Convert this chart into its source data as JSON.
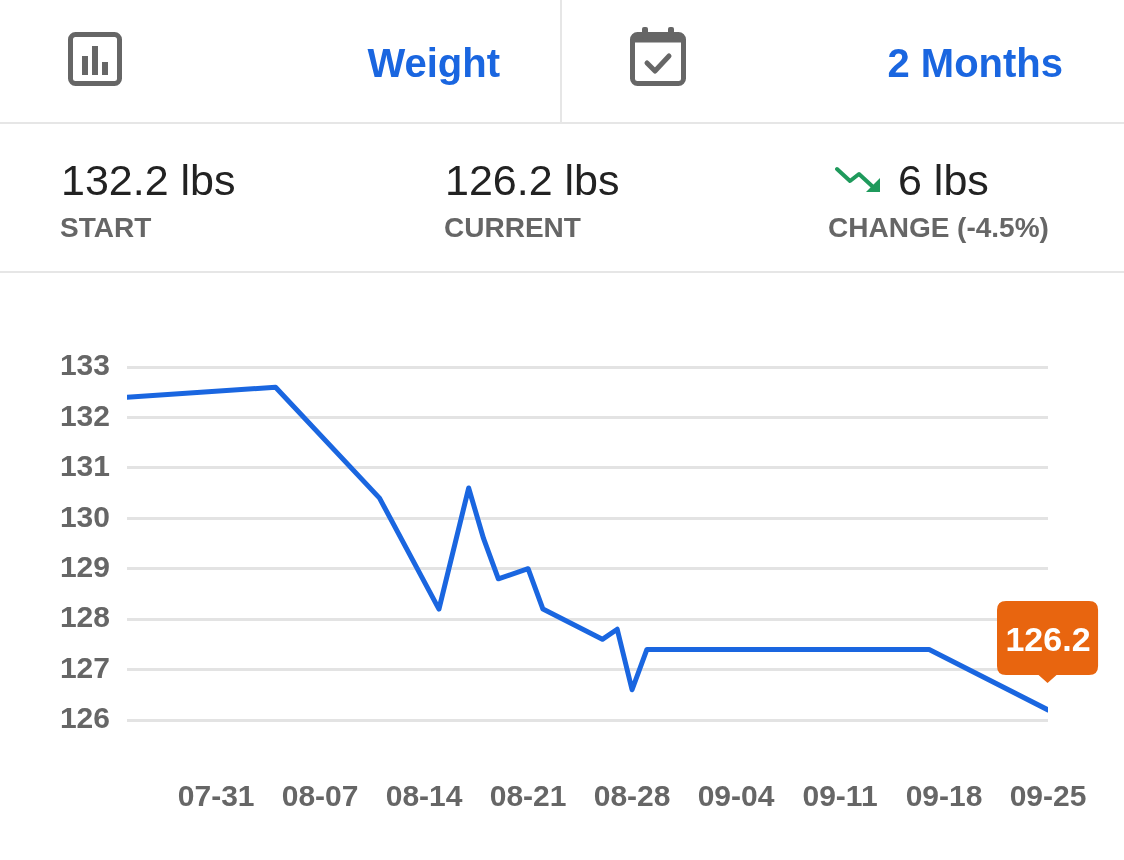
{
  "chart_data": {
    "type": "line",
    "title": "Weight",
    "subtitle": "2 Months",
    "annotations": [
      "132.2 lbs",
      "START",
      "126.2 lbs",
      "CURRENT",
      "6 lbs",
      "CHANGE (-4.5%)"
    ],
    "x": [
      "--07-25",
      "--08-04",
      "--08-11",
      "--08-15",
      "--08-17",
      "--08-18",
      "--08-19",
      "--08-21",
      "--08-22",
      "--08-26",
      "--08-27",
      "--08-28",
      "--08-29",
      "--09-17",
      "--09-25"
    ],
    "series": [
      {
        "color": "#1a66e0",
        "values": [
          132.4,
          132.6,
          130.4,
          128.2,
          130.6,
          129.6,
          128.8,
          129.0,
          128.2,
          127.6,
          127.8,
          126.6,
          127.4,
          127.4,
          126.2
        ],
        "value_labels": [
          null,
          null,
          null,
          null,
          null,
          null,
          null,
          null,
          null,
          null,
          null,
          null,
          null,
          null,
          "126.2"
        ]
      }
    ],
    "xlim": [
      "--07-25",
      "--09-25"
    ],
    "xticks": [
      {
        "value": "--07-31",
        "label": "07-31"
      },
      {
        "value": "--08-07",
        "label": "08-07"
      },
      {
        "value": "--08-14",
        "label": "08-14"
      },
      {
        "value": "--08-21",
        "label": "08-21"
      },
      {
        "value": "--08-28",
        "label": "08-28"
      },
      {
        "value": "--09-04",
        "label": "09-04"
      },
      {
        "value": "--09-11",
        "label": "09-11"
      },
      {
        "value": "--09-18",
        "label": "09-18"
      },
      {
        "value": "--09-25",
        "label": "09-25"
      }
    ],
    "ylim": [
      126,
      133
    ],
    "yticks": [
      126,
      127,
      128,
      129,
      130,
      131,
      132,
      133
    ],
    "grid": "y",
    "legend": false,
    "marker": "none",
    "line_style": "solid"
  }
}
